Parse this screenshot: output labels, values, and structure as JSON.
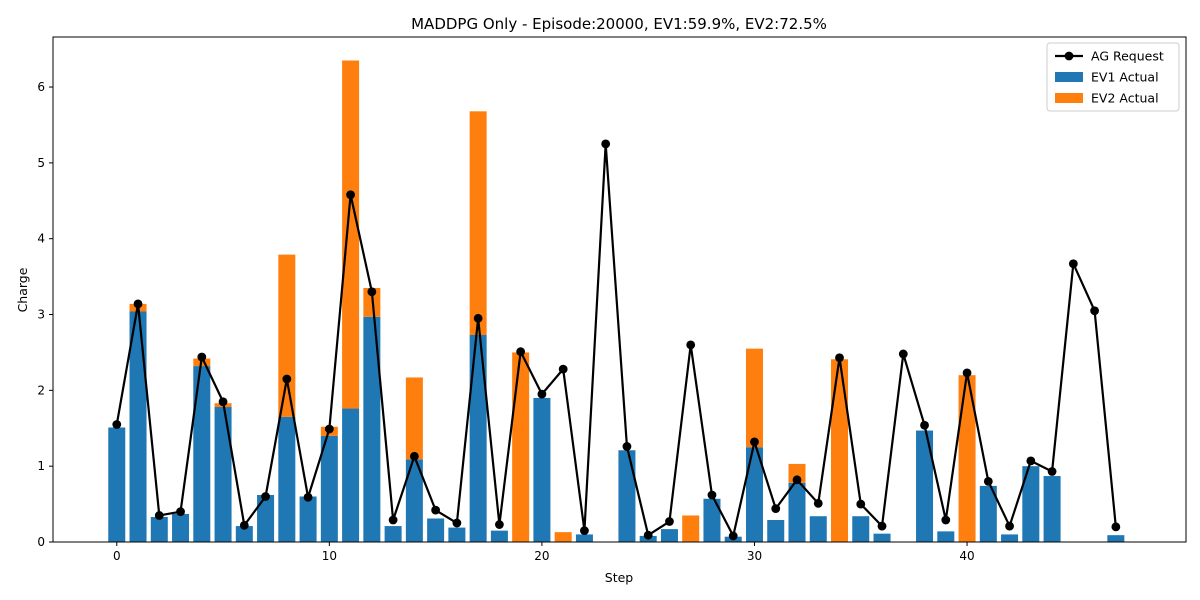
{
  "chart_data": {
    "type": "bar",
    "title": "MADDPG Only - Episode:20000, EV1:59.9%, EV2:72.5%",
    "xlabel": "Step",
    "ylabel": "Charge",
    "xlim": [
      -3,
      50.3
    ],
    "ylim": [
      0,
      6.66
    ],
    "xticks": [
      0,
      10,
      20,
      30,
      40
    ],
    "yticks": [
      0,
      1,
      2,
      3,
      4,
      5,
      6
    ],
    "legend_position": "top-right",
    "x": [
      0,
      1,
      2,
      3,
      4,
      5,
      6,
      7,
      8,
      9,
      10,
      11,
      12,
      13,
      14,
      15,
      16,
      17,
      18,
      19,
      20,
      21,
      22,
      23,
      24,
      25,
      26,
      27,
      28,
      29,
      30,
      31,
      32,
      33,
      34,
      35,
      36,
      37,
      38,
      39,
      40,
      41,
      42,
      43,
      44,
      45,
      46,
      47
    ],
    "series": [
      {
        "name": "EV1 Actual",
        "type": "bar",
        "color": "#1f77b4",
        "values": [
          1.51,
          3.04,
          0.33,
          0.37,
          2.32,
          1.78,
          0.21,
          0.62,
          1.65,
          0.6,
          1.4,
          1.76,
          2.97,
          0.21,
          1.09,
          0.31,
          0.19,
          2.73,
          0.15,
          0,
          1.9,
          0,
          0.1,
          0,
          1.21,
          0.08,
          0.17,
          0,
          0.57,
          0.07,
          1.25,
          0.29,
          0.78,
          0.34,
          0,
          0.34,
          0.11,
          0,
          1.47,
          0.14,
          0,
          0.74,
          0.1,
          1,
          0.87,
          0,
          0,
          0.09
        ]
      },
      {
        "name": "EV2 Actual",
        "type": "bar",
        "color": "#ff7f0e",
        "values": [
          0,
          0.1,
          0,
          0,
          0.1,
          0.05,
          0,
          0,
          2.14,
          0,
          0.12,
          4.59,
          0.38,
          0,
          1.08,
          0,
          0,
          2.95,
          0,
          2.5,
          0,
          0.13,
          0,
          0,
          0,
          0,
          0,
          0.35,
          0,
          0,
          1.3,
          0,
          0.25,
          0,
          2.41,
          0,
          0,
          0,
          0,
          0,
          2.2,
          0,
          0,
          0,
          0,
          0,
          0,
          0
        ]
      },
      {
        "name": "AG Request",
        "type": "line",
        "color": "#000000",
        "values": [
          1.55,
          3.14,
          0.35,
          0.4,
          2.44,
          1.85,
          0.22,
          0.6,
          2.15,
          0.59,
          1.49,
          4.58,
          3.3,
          0.29,
          1.13,
          0.42,
          0.25,
          2.95,
          0.23,
          2.51,
          1.95,
          2.28,
          0.15,
          5.25,
          1.26,
          0.09,
          0.27,
          2.6,
          0.62,
          0.08,
          1.32,
          0.44,
          0.82,
          0.51,
          2.43,
          0.5,
          0.21,
          2.48,
          1.54,
          0.29,
          2.23,
          0.8,
          0.21,
          1.07,
          0.93,
          3.67,
          3.05,
          0.2
        ]
      }
    ]
  }
}
